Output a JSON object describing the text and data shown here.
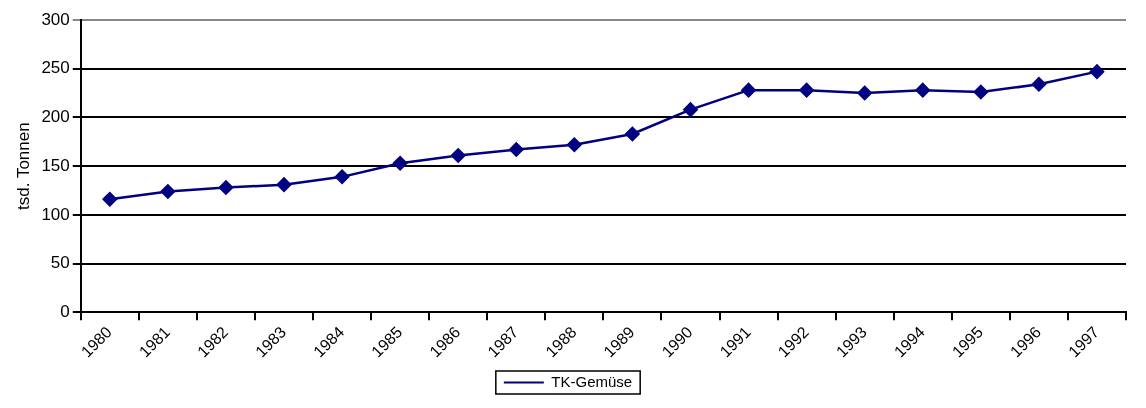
{
  "chart_data": {
    "type": "line",
    "ylabel": "tsd. Tonnen",
    "categories": [
      "1980",
      "1981",
      "1982",
      "1983",
      "1984",
      "1985",
      "1986",
      "1987",
      "1988",
      "1989",
      "1990",
      "1991",
      "1992",
      "1993",
      "1994",
      "1995",
      "1996",
      "1997"
    ],
    "series": [
      {
        "name": "TK-Gemüse",
        "color": "#000080",
        "values": [
          116,
          124,
          128,
          131,
          139,
          153,
          161,
          167,
          172,
          183,
          208,
          228,
          228,
          225,
          228,
          226,
          234,
          247
        ]
      }
    ],
    "ylim": [
      0,
      300
    ],
    "yticks": [
      0,
      50,
      100,
      150,
      200,
      250,
      300
    ],
    "grid": "y",
    "legend": "bottom",
    "marker": "diamond",
    "line_style": "solid"
  }
}
